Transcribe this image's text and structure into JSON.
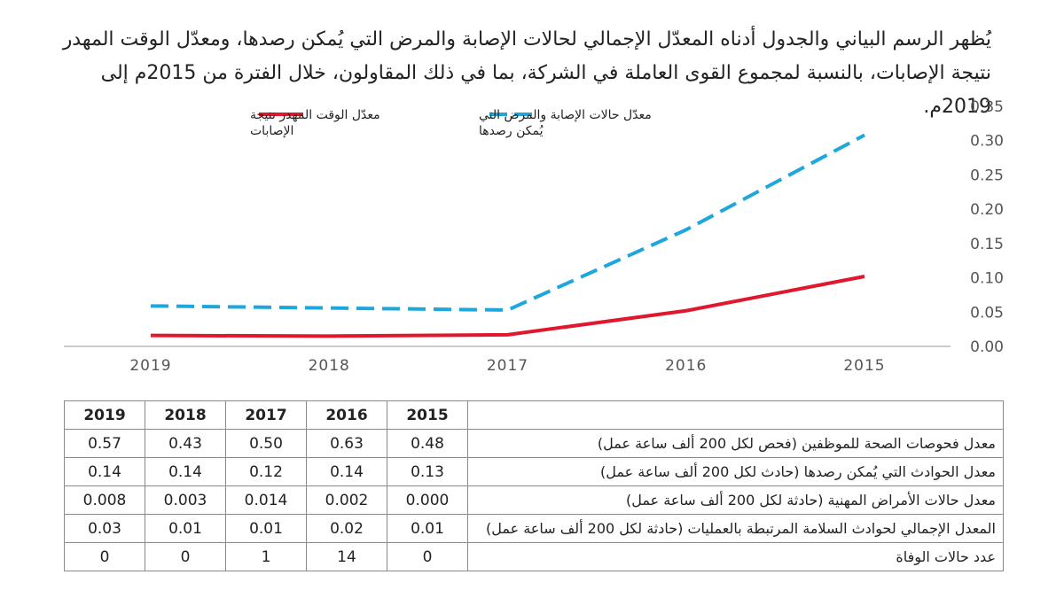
{
  "intro_text": "يُظهر الرسم البياني والجدول أدناه المعدّل الإجمالي لحالات الإصابة والمرض التي يُمكن رصدها، ومعدّل الوقت المهدر نتيجة الإصابات، بالنسبة لمجموع القوى العاملة في الشركة، بما في ذلك المقاولون، خلال الفترة من 2015م إلى 2019م.",
  "chart_data": {
    "type": "line",
    "x": [
      "2019",
      "2018",
      "2017",
      "2016",
      "2015"
    ],
    "ylim": [
      0,
      0.35
    ],
    "yticks": [
      "0.00",
      "0.05",
      "0.10",
      "0.15",
      "0.20",
      "0.25",
      "0.30",
      "0.35"
    ],
    "series": [
      {
        "name_lines": [
          "معدّل حالات الإصابة والمرض التي",
          "يُمكن رصدها"
        ],
        "values": [
          0.059,
          0.056,
          0.053,
          0.17,
          0.308
        ],
        "color": "#1ea7dc",
        "style": "dashed"
      },
      {
        "name_lines": [
          "معدّل الوقت المهدر نتيجة",
          "الإصابات"
        ],
        "values": [
          0.016,
          0.015,
          0.017,
          0.052,
          0.102
        ],
        "color": "#e0182d",
        "style": "solid"
      }
    ],
    "legend_position": "top-left",
    "grid": false
  },
  "table": {
    "years": [
      "2019",
      "2018",
      "2017",
      "2016",
      "2015"
    ],
    "rows": [
      {
        "label": "معدل فحوصات الصحة للموظفين (فحص لكل 200 ألف ساعة عمل)",
        "values": [
          "0.57",
          "0.43",
          "0.50",
          "0.63",
          "0.48"
        ]
      },
      {
        "label": "معدل الحوادث التي يُمكن رصدها (حادث لكل 200 ألف ساعة عمل)",
        "values": [
          "0.14",
          "0.14",
          "0.12",
          "0.14",
          "0.13"
        ]
      },
      {
        "label": "معدل حالات الأمراض المهنية (حادثة لكل 200 ألف ساعة عمل)",
        "values": [
          "0.008",
          "0.003",
          "0.014",
          "0.002",
          "0.000"
        ]
      },
      {
        "label": "المعدل الإجمالي لحوادث السلامة المرتبطة بالعمليات (حادثة لكل 200 ألف ساعة عمل)",
        "values": [
          "0.03",
          "0.01",
          "0.01",
          "0.02",
          "0.01"
        ]
      },
      {
        "label": "عدد حالات الوفاة",
        "values": [
          "0",
          "0",
          "1",
          "14",
          "0"
        ]
      }
    ]
  },
  "colors": {
    "text": "#222222",
    "axis": "#888888",
    "dashed_series": "#1ea7dc",
    "solid_series": "#e0182d"
  }
}
